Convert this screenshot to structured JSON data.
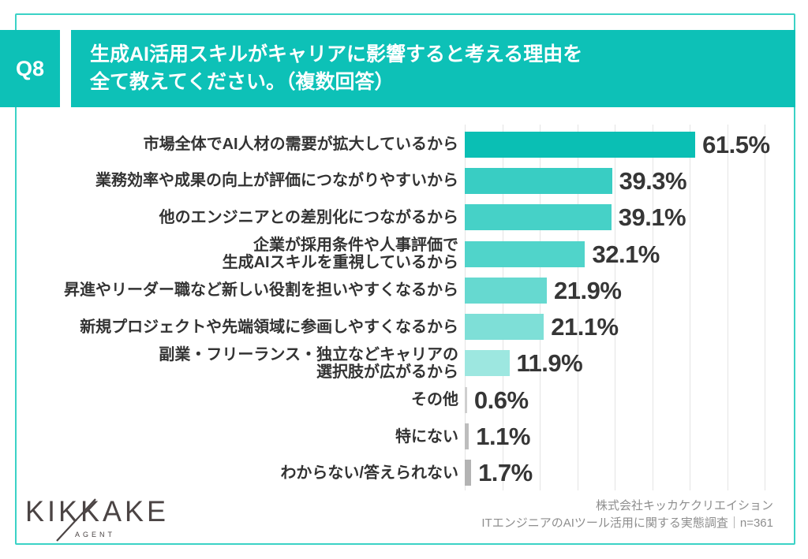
{
  "header": {
    "q_label": "Q8",
    "title_lines": [
      "生成AI活用スキルがキャリアに影響すると考える理由を",
      "全て教えてください。（複数回答）"
    ]
  },
  "chart_data": {
    "type": "bar",
    "orientation": "horizontal",
    "title": "生成AI活用スキルがキャリアに影響すると考える理由（複数回答）",
    "categories": [
      "市場全体でAI人材の需要が拡大しているから",
      "業務効率や成果の向上が評価につながりやすいから",
      "他のエンジニアとの差別化につながるから",
      "企業が採用条件や人事評価で\n生成AIスキルを重視しているから",
      "昇進やリーダー職など新しい役割を担いやすくなるから",
      "新規プロジェクトや先端領域に参画しやすくなるから",
      "副業・フリーランス・独立などキャリアの\n選択肢が広がるから",
      "その他",
      "特にない",
      "わからない/答えられない"
    ],
    "values": [
      61.5,
      39.3,
      39.1,
      32.1,
      21.9,
      21.1,
      11.9,
      0.6,
      1.1,
      1.7
    ],
    "value_labels": [
      "61.5%",
      "39.3%",
      "39.1%",
      "32.1%",
      "21.9%",
      "21.1%",
      "11.9%",
      "0.6%",
      "1.1%",
      "1.7%"
    ],
    "bar_colors": [
      "#0abfb4",
      "#39cdc3",
      "#46d1c7",
      "#50d4ca",
      "#66d9d0",
      "#7edfd7",
      "#9de7e0",
      "#cfcfcf",
      "#bdbdbd",
      "#b3b3b3"
    ],
    "xlim": [
      0,
      88
    ],
    "gridline_step": 10,
    "grid": true,
    "legend": false,
    "xlabel": "",
    "ylabel": ""
  },
  "footer": {
    "logo_text": "KIKKAKE",
    "logo_sub": "AGENT",
    "source_line1": "株式会社キッカケクリエイション",
    "source_line2": "ITエンジニアのAIツール活用に関する実態調査｜n=361"
  },
  "colors": {
    "header_teal": "#0dc1b7",
    "border_teal": "#3bd2c6",
    "grid_line": "#e4e4e4",
    "label_text": "#333333",
    "value_text": "#363636",
    "source_text": "#8e8e8e",
    "logo_color": "#4b4444"
  }
}
